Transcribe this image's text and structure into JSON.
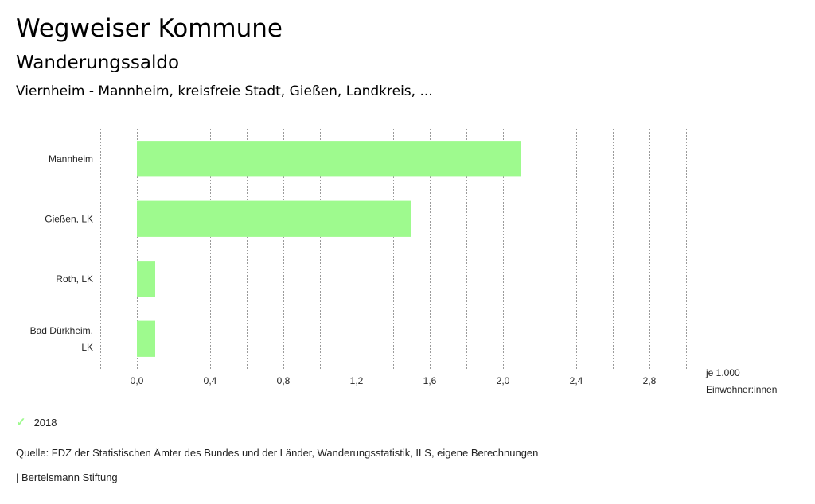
{
  "header": {
    "title": "Wegweiser Kommune",
    "subtitle": "Wanderungssaldo",
    "selection": "Viernheim - Mannheim, kreisfreie Stadt, Gießen, Landkreis, ..."
  },
  "chart_data": {
    "type": "bar",
    "orientation": "horizontal",
    "categories": [
      [
        "Mannheim"
      ],
      [
        "Gießen, LK"
      ],
      [
        "Roth, LK"
      ],
      [
        "Bad Dürkheim,",
        "LK"
      ]
    ],
    "series": [
      {
        "name": "2018",
        "values": [
          2.1,
          1.5,
          0.1,
          0.1
        ],
        "color": "#9efa8e"
      }
    ],
    "xlim": [
      -0.2,
      3.0
    ],
    "ticks": [
      0.0,
      0.4,
      0.8,
      1.2,
      1.6,
      2.0,
      2.4,
      2.8
    ],
    "tick_labels": [
      "0,0",
      "0,4",
      "0,8",
      "1,2",
      "1,6",
      "2,0",
      "2,4",
      "2,8"
    ],
    "grid_step": 0.2,
    "unit_label": [
      "je 1.000",
      "Einwohner:innen"
    ],
    "legend_position": "bottom-left"
  },
  "legend": {
    "label": "2018",
    "icon": "check-icon"
  },
  "footer": {
    "source": "Quelle: FDZ der Statistischen Ämter des Bundes und der Länder, Wanderungsstatistik, ILS, eigene Berechnungen",
    "brand": "| Bertelsmann Stiftung"
  }
}
